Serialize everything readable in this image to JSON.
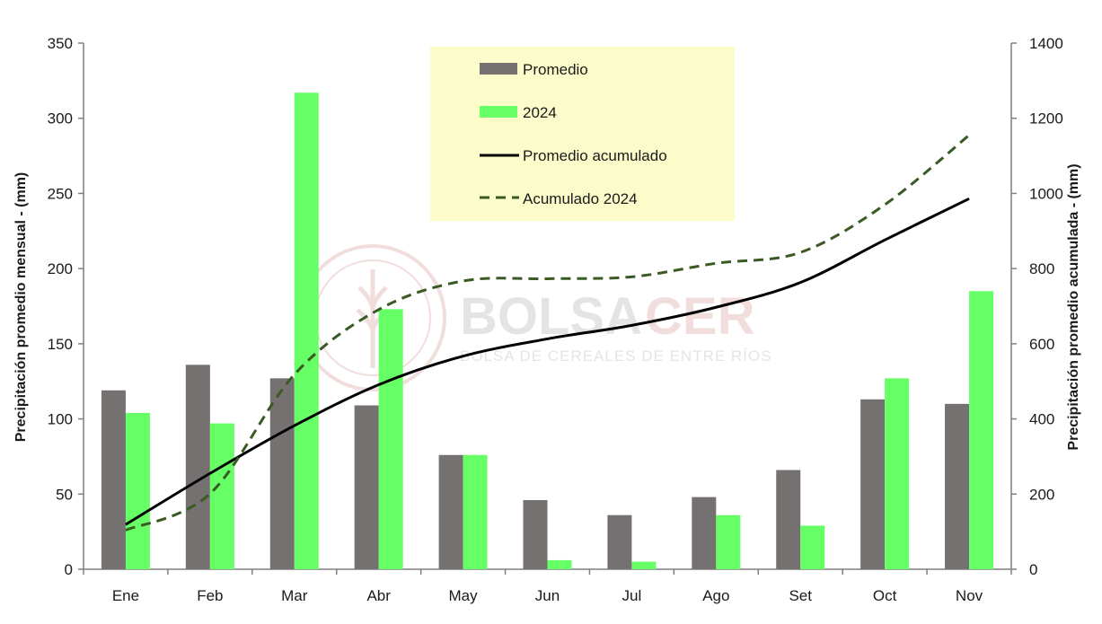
{
  "chart_data": {
    "type": "bar",
    "categories": [
      "Ene",
      "Feb",
      "Mar",
      "Abr",
      "May",
      "Jun",
      "Jul",
      "Ago",
      "Set",
      "Oct",
      "Nov"
    ],
    "series": [
      {
        "name": "Promedio",
        "kind": "bar",
        "axis": "left",
        "color": "#767171",
        "values": [
          119,
          136,
          127,
          109,
          76,
          46,
          36,
          48,
          66,
          113,
          110
        ]
      },
      {
        "name": "2024",
        "kind": "bar",
        "axis": "left",
        "color": "#66ff66",
        "values": [
          104,
          97,
          317,
          173,
          76,
          6,
          5,
          36,
          29,
          127,
          185
        ]
      },
      {
        "name": "Promedio acumulado",
        "kind": "line",
        "axis": "right",
        "color": "#000000",
        "style": "solid",
        "values": [
          119,
          255,
          382,
          491,
          567,
          613,
          649,
          697,
          763,
          876,
          986
        ]
      },
      {
        "name": "Acumulado 2024",
        "kind": "line",
        "axis": "right",
        "color": "#3a5a24",
        "style": "dashed",
        "values": [
          104,
          201,
          518,
          691,
          767,
          773,
          778,
          814,
          843,
          970,
          1155
        ]
      }
    ],
    "ylabel": "Precipitación promedio mensual - (mm)",
    "y2label": "Precipitación promedio acumulada - (mm)",
    "ylim": [
      0,
      350
    ],
    "y2lim": [
      0,
      1400
    ],
    "yticks": [
      "0",
      "50",
      "100",
      "150",
      "200",
      "250",
      "300",
      "350"
    ],
    "y2ticks": [
      "0",
      "200",
      "400",
      "600",
      "800",
      "1000",
      "1200",
      "1400"
    ],
    "grid": false,
    "legend_position": "top-center"
  },
  "watermark": {
    "title_part1": "BOLSA",
    "title_part2": "CER",
    "subtitle": "BOLSA DE CEREALES DE ENTRE RÍOS"
  },
  "colors": {
    "legend_bg": "#fcfccb",
    "promedio_bar": "#767171",
    "bar_2024": "#66ff66",
    "line_promedio": "#000000",
    "line_2024": "#3a5a24"
  }
}
